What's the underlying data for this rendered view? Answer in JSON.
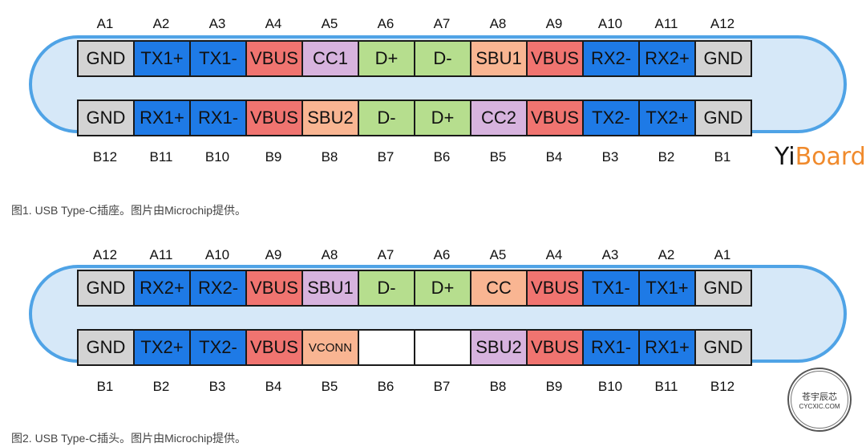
{
  "figures": [
    {
      "top_labels": [
        "A1",
        "A2",
        "A3",
        "A4",
        "A5",
        "A6",
        "A7",
        "A8",
        "A9",
        "A10",
        "A11",
        "A12"
      ],
      "top_pins": [
        {
          "label": "GND",
          "type": "gnd"
        },
        {
          "label": "TX1+",
          "type": "tx"
        },
        {
          "label": "TX1-",
          "type": "tx"
        },
        {
          "label": "VBUS",
          "type": "vbus"
        },
        {
          "label": "CC1",
          "type": "cc"
        },
        {
          "label": "D+",
          "type": "d"
        },
        {
          "label": "D-",
          "type": "d"
        },
        {
          "label": "SBU1",
          "type": "sbu"
        },
        {
          "label": "VBUS",
          "type": "vbus"
        },
        {
          "label": "RX2-",
          "type": "rx"
        },
        {
          "label": "RX2+",
          "type": "rx"
        },
        {
          "label": "GND",
          "type": "gnd"
        }
      ],
      "bottom_pins": [
        {
          "label": "GND",
          "type": "gnd"
        },
        {
          "label": "RX1+",
          "type": "rx"
        },
        {
          "label": "RX1-",
          "type": "rx"
        },
        {
          "label": "VBUS",
          "type": "vbus"
        },
        {
          "label": "SBU2",
          "type": "sbu"
        },
        {
          "label": "D-",
          "type": "d"
        },
        {
          "label": "D+",
          "type": "d"
        },
        {
          "label": "CC2",
          "type": "cc"
        },
        {
          "label": "VBUS",
          "type": "vbus"
        },
        {
          "label": "TX2-",
          "type": "tx"
        },
        {
          "label": "TX2+",
          "type": "tx"
        },
        {
          "label": "GND",
          "type": "gnd"
        }
      ],
      "bottom_labels": [
        "B12",
        "B11",
        "B10",
        "B9",
        "B8",
        "B7",
        "B6",
        "B5",
        "B4",
        "B3",
        "B2",
        "B1"
      ],
      "caption": "图1. USB Type-C插座。图片由Microchip提供。"
    },
    {
      "top_labels": [
        "A12",
        "A11",
        "A10",
        "A9",
        "A8",
        "A7",
        "A6",
        "A5",
        "A4",
        "A3",
        "A2",
        "A1"
      ],
      "top_pins": [
        {
          "label": "GND",
          "type": "gnd"
        },
        {
          "label": "RX2+",
          "type": "rx"
        },
        {
          "label": "RX2-",
          "type": "rx"
        },
        {
          "label": "VBUS",
          "type": "vbus"
        },
        {
          "label": "SBU1",
          "type": "cc"
        },
        {
          "label": "D-",
          "type": "d"
        },
        {
          "label": "D+",
          "type": "d"
        },
        {
          "label": "CC",
          "type": "sbu"
        },
        {
          "label": "VBUS",
          "type": "vbus"
        },
        {
          "label": "TX1-",
          "type": "tx"
        },
        {
          "label": "TX1+",
          "type": "tx"
        },
        {
          "label": "GND",
          "type": "gnd"
        }
      ],
      "bottom_pins": [
        {
          "label": "GND",
          "type": "gnd"
        },
        {
          "label": "TX2+",
          "type": "tx"
        },
        {
          "label": "TX2-",
          "type": "tx"
        },
        {
          "label": "VBUS",
          "type": "vbus"
        },
        {
          "label": "VCONN",
          "type": "sbu",
          "small": true
        },
        {
          "label": "",
          "type": "empty"
        },
        {
          "label": "",
          "type": "empty"
        },
        {
          "label": "SBU2",
          "type": "cc"
        },
        {
          "label": "VBUS",
          "type": "vbus"
        },
        {
          "label": "RX1-",
          "type": "rx"
        },
        {
          "label": "RX1+",
          "type": "rx"
        },
        {
          "label": "GND",
          "type": "gnd"
        }
      ],
      "bottom_labels": [
        "B1",
        "B2",
        "B3",
        "B4",
        "B5",
        "B6",
        "B7",
        "B8",
        "B9",
        "B10",
        "B11",
        "B12"
      ],
      "caption": "图2. USB Type-C插头。图片由Microchip提供。"
    }
  ],
  "brand": {
    "prefix": "Yi",
    "accent": "Board"
  },
  "stamp": {
    "line1": "苍宇辰芯",
    "line2": "CYCXIC.COM"
  }
}
